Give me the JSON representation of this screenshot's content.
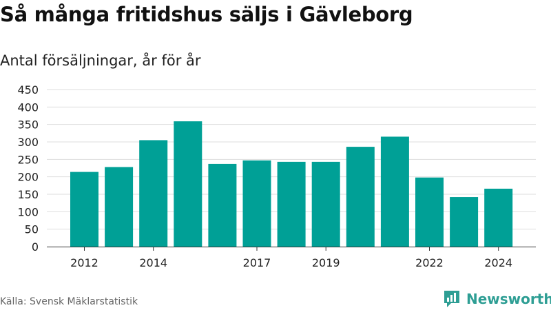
{
  "title": "Så många fritidshus säljs i Gävleborg",
  "subtitle": "Antal försäljningar, år för år",
  "source": "Källa: Svensk Mäklarstatistik",
  "brand": {
    "name": "Newsworthy",
    "icon": "newsworthy-logo-icon",
    "color": "#2e9e94"
  },
  "chart_data": {
    "type": "bar",
    "categories": [
      "2012",
      "2013",
      "2014",
      "2015",
      "2016",
      "2017",
      "2018",
      "2019",
      "2020",
      "2021",
      "2022",
      "2023",
      "2024"
    ],
    "values": [
      214,
      228,
      305,
      359,
      237,
      247,
      243,
      243,
      286,
      315,
      198,
      142,
      166
    ],
    "x_tick_labels": [
      "2012",
      "2014",
      "2017",
      "2019",
      "2022",
      "2024"
    ],
    "y_ticks": [
      0,
      50,
      100,
      150,
      200,
      250,
      300,
      350,
      400,
      450
    ],
    "ylim": [
      0,
      450
    ],
    "xlabel": "",
    "ylabel": "",
    "grid": true,
    "bar_color": "#00a096"
  }
}
